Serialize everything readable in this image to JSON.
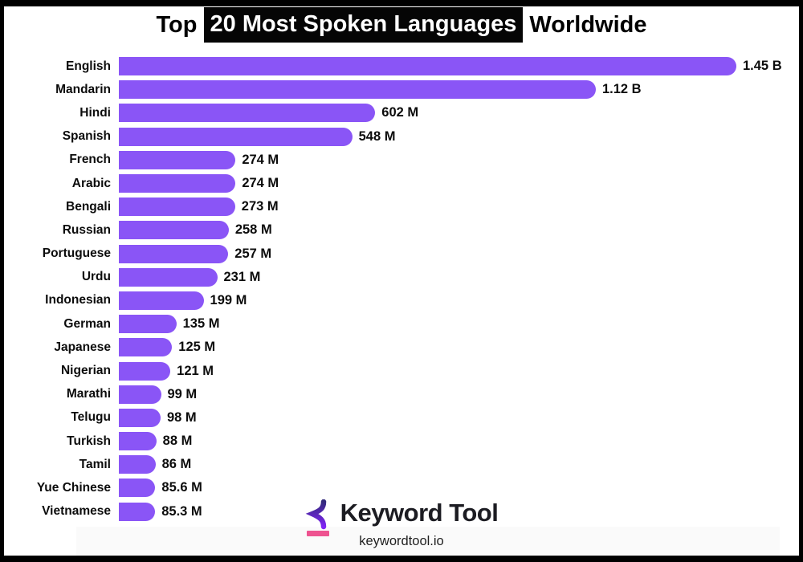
{
  "title": {
    "prefix": "Top",
    "highlight": "20 Most Spoken Languages",
    "suffix": "Worldwide",
    "highlight_bg": "#050505",
    "highlight_fg": "#ffffff"
  },
  "chart_data": {
    "type": "bar",
    "orientation": "horizontal",
    "title": "Top 20 Most Spoken Languages Worldwide",
    "categories": [
      "English",
      "Mandarin",
      "Hindi",
      "Spanish",
      "French",
      "Arabic",
      "Bengali",
      "Russian",
      "Portuguese",
      "Urdu",
      "Indonesian",
      "German",
      "Japanese",
      "Nigerian",
      "Marathi",
      "Telugu",
      "Turkish",
      "Tamil",
      "Yue Chinese",
      "Vietnamese"
    ],
    "values_millions": [
      1450,
      1120,
      602,
      548,
      274,
      274,
      273,
      258,
      257,
      231,
      199,
      135,
      125,
      121,
      99,
      98,
      88,
      86,
      85.6,
      85.3
    ],
    "value_labels": [
      "1.45 B",
      "1.12 B",
      "602 M",
      "548 M",
      "274 M",
      "274 M",
      "273 M",
      "258 M",
      "257 M",
      "231 M",
      "199 M",
      "135 M",
      "125 M",
      "121 M",
      "99 M",
      "98 M",
      "88 M",
      "86 M",
      "85.6 M",
      "85.3 M"
    ],
    "bar_color": "#8a55f6",
    "label_color": "#0c0c0c",
    "grid": false,
    "legend": false,
    "axes_shown": false
  },
  "footer": {
    "brand": "Keyword Tool",
    "domain": "keywordtool.io",
    "logo_colors": {
      "icon_gradient_top": "#332a7c",
      "icon_gradient_bottom": "#8024f5",
      "underline_pink": "#ee5390"
    }
  }
}
